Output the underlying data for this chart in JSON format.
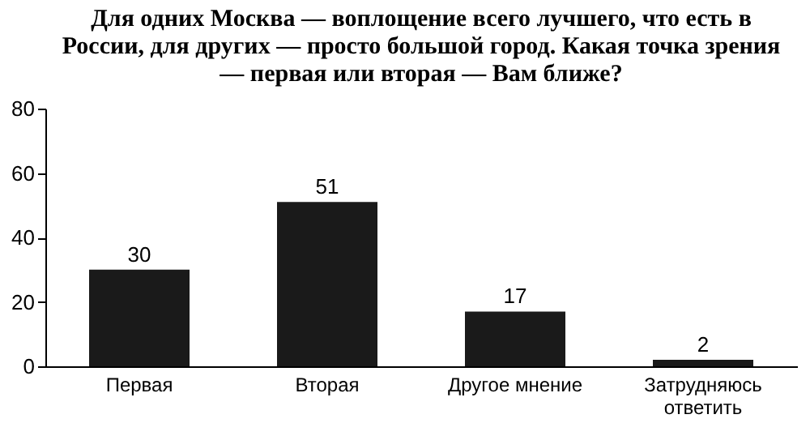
{
  "chart_data": {
    "type": "bar",
    "title": "Для одних Москва — воплощение всего лучшего, что есть в России, для других — просто большой город. Какая точка зрения — первая или вторая — Вам ближе?",
    "categories": [
      "Первая",
      "Вторая",
      "Другое мнение",
      "Затрудняюсь ответить"
    ],
    "values": [
      30,
      51,
      17,
      2
    ],
    "color": "#1a1a1a",
    "ylim": [
      0,
      80
    ],
    "yticks": [
      0,
      20,
      40,
      60,
      80
    ],
    "grid": false,
    "data_labels": true
  }
}
